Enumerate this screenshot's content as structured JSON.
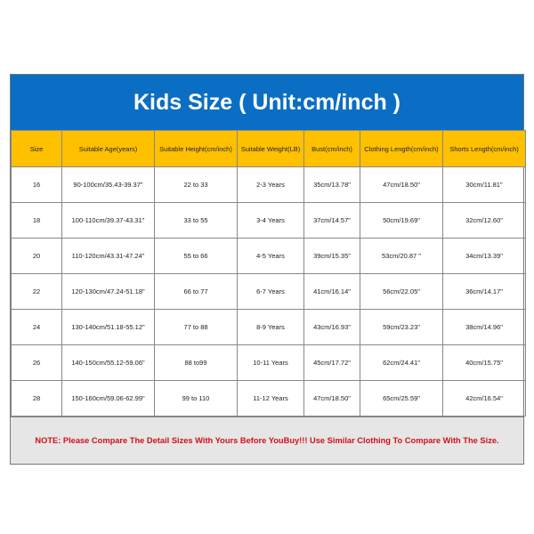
{
  "title": "Kids Size ( Unit:cm/inch )",
  "columns": [
    "Size",
    "Suitable Age(years)",
    "Suitable Height(cm/inch)",
    "Suitable Weight(LB)",
    "Bust(cm/inch)",
    "Clothing Length(cm/inch)",
    "Shorts Length(cm/inch)"
  ],
  "rows": [
    [
      "16",
      "90-100cm/35.43-39.37\"",
      "22 to 33",
      "2-3 Years",
      "35cm/13.78\"",
      "47cm/18.50\"",
      "30cm/11.81\""
    ],
    [
      "18",
      "100-110cm/39.37-43.31\"",
      "33 to 55",
      "3-4 Years",
      "37cm/14.57\"",
      "50cm/19.69\"",
      "32cm/12.60\""
    ],
    [
      "20",
      "110-120cm/43.31-47.24\"",
      "55 to 66",
      "4-5 Years",
      "39cm/15.35\"",
      "53cm/20.87 \"",
      "34cm/13.39\""
    ],
    [
      "22",
      "120-130cm/47.24-51.18\"",
      "66 to 77",
      "6-7 Years",
      "41cm/16.14\"",
      "56cm/22.05\"",
      "36cm/14.17\""
    ],
    [
      "24",
      "130-140cm/51.18-55.12\"",
      "77 to 88",
      "8-9 Years",
      "43cm/16.93\"",
      "59cm/23.23\"",
      "38cm/14.96\""
    ],
    [
      "26",
      "140-150cm/55.12-59.06\"",
      "88 to99",
      "10-11 Years",
      "45cm/17.72\"",
      "62cm/24.41\"",
      "40cm/15.75\""
    ],
    [
      "28",
      "150-160cm/59.06-62.99\"",
      "99 to 110",
      "11-12 Years",
      "47cm/18.50\"",
      "65cm/25.59\"",
      "42cm/16.54\""
    ]
  ],
  "note": "NOTE: Please Compare The Detail Sizes With Yours Before YouBuy!!! Use Similar Clothing To Compare With The Size.",
  "colors": {
    "title_bg": "#0a6ec4",
    "header_bg": "#ffc000",
    "note_text": "#d0101a",
    "note_bg": "#e6e6e6"
  }
}
